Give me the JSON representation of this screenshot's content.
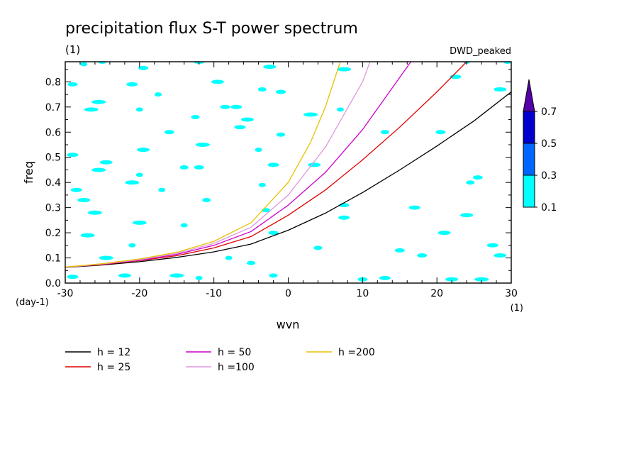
{
  "chart_data": {
    "type": "line",
    "title": "precipitation flux S-T power spectrum",
    "subtitle_left": "(1)",
    "subtitle_right": "DWD_peaked",
    "xlabel": "wvn",
    "ylabel": "freq",
    "x_unit": "(1)",
    "y_unit": "(day-1)",
    "xlim": [
      -30,
      30
    ],
    "ylim": [
      0,
      0.88
    ],
    "xticks": [
      -30,
      -20,
      -10,
      0,
      10,
      20,
      30
    ],
    "yticks": [
      0.0,
      0.1,
      0.2,
      0.3,
      0.4,
      0.5,
      0.6,
      0.7,
      0.8
    ],
    "series": [
      {
        "name": "h = 12",
        "h": 12,
        "color": "#000000",
        "x": [
          -30,
          -25,
          -20,
          -15,
          -10,
          -5,
          0,
          5,
          10,
          15,
          20,
          25,
          30
        ],
        "y": [
          0.062,
          0.072,
          0.085,
          0.102,
          0.124,
          0.155,
          0.21,
          0.278,
          0.36,
          0.45,
          0.545,
          0.645,
          0.76
        ]
      },
      {
        "name": "h = 25",
        "h": 25,
        "color": "#e00000",
        "x": [
          -30,
          -25,
          -20,
          -15,
          -10,
          -5,
          0,
          5,
          10,
          15,
          20,
          24
        ],
        "y": [
          0.063,
          0.074,
          0.089,
          0.109,
          0.14,
          0.185,
          0.27,
          0.37,
          0.49,
          0.62,
          0.76,
          0.88
        ]
      },
      {
        "name": "h = 50",
        "h": 50,
        "color": "#cc00cc",
        "x": [
          -30,
          -25,
          -20,
          -15,
          -10,
          -5,
          0,
          5,
          10,
          16.5
        ],
        "y": [
          0.063,
          0.075,
          0.091,
          0.114,
          0.15,
          0.205,
          0.31,
          0.44,
          0.61,
          0.88
        ]
      },
      {
        "name": "h =100",
        "h": 100,
        "color": "#dd99dd",
        "x": [
          -30,
          -25,
          -20,
          -15,
          -10,
          -5,
          0,
          5,
          10,
          11
        ],
        "y": [
          0.063,
          0.076,
          0.093,
          0.118,
          0.158,
          0.222,
          0.35,
          0.54,
          0.8,
          0.88
        ]
      },
      {
        "name": "h =200",
        "h": 200,
        "color": "#e8c000",
        "x": [
          -30,
          -25,
          -20,
          -15,
          -10,
          -5,
          0,
          3,
          5,
          7
        ],
        "y": [
          0.064,
          0.077,
          0.096,
          0.122,
          0.166,
          0.24,
          0.4,
          0.56,
          0.7,
          0.88
        ]
      }
    ],
    "colorbar": {
      "levels": [
        "0.1",
        "0.3",
        "0.5",
        "0.7"
      ],
      "colors": [
        "#00ffff",
        "#0066ff",
        "#0000cc",
        "#5500aa"
      ],
      "extend": "max"
    },
    "shading": {
      "level": "0.1-0.3",
      "color": "#00ffff",
      "patches": [
        [
          -27.5,
          0.87
        ],
        [
          -25,
          0.88
        ],
        [
          -19.5,
          0.855
        ],
        [
          -12,
          0.88
        ],
        [
          -2.5,
          0.86
        ],
        [
          7.5,
          0.85
        ],
        [
          24,
          0.88
        ],
        [
          29.5,
          0.88
        ],
        [
          -29,
          0.79
        ],
        [
          -21,
          0.79
        ],
        [
          -9.5,
          0.8
        ],
        [
          -25.5,
          0.72
        ],
        [
          -17.5,
          0.75
        ],
        [
          -3.5,
          0.77
        ],
        [
          -1,
          0.76
        ],
        [
          22.5,
          0.82
        ],
        [
          28.5,
          0.77
        ],
        [
          -26.5,
          0.69
        ],
        [
          -20,
          0.69
        ],
        [
          -12.5,
          0.66
        ],
        [
          -8.5,
          0.7
        ],
        [
          -7,
          0.7
        ],
        [
          -5.5,
          0.65
        ],
        [
          3,
          0.67
        ],
        [
          7,
          0.69
        ],
        [
          13,
          0.6
        ],
        [
          -16,
          0.6
        ],
        [
          -6.5,
          0.62
        ],
        [
          -19.5,
          0.53
        ],
        [
          -11.5,
          0.55
        ],
        [
          -4,
          0.53
        ],
        [
          -1,
          0.59
        ],
        [
          20.5,
          0.6
        ],
        [
          -29,
          0.51
        ],
        [
          -24.5,
          0.48
        ],
        [
          -25.5,
          0.45
        ],
        [
          -20,
          0.43
        ],
        [
          -14,
          0.46
        ],
        [
          -12,
          0.46
        ],
        [
          -2,
          0.47
        ],
        [
          3.5,
          0.47
        ],
        [
          -21,
          0.4
        ],
        [
          -3.5,
          0.39
        ],
        [
          24.5,
          0.4
        ],
        [
          25.5,
          0.42
        ],
        [
          -28.5,
          0.37
        ],
        [
          -27.5,
          0.33
        ],
        [
          -26,
          0.28
        ],
        [
          -17,
          0.37
        ],
        [
          -11,
          0.33
        ],
        [
          7.5,
          0.31
        ],
        [
          17,
          0.3
        ],
        [
          24,
          0.27
        ],
        [
          -20,
          0.24
        ],
        [
          -14,
          0.23
        ],
        [
          -3,
          0.29
        ],
        [
          -2,
          0.2
        ],
        [
          7.5,
          0.26
        ],
        [
          21,
          0.2
        ],
        [
          -27,
          0.19
        ],
        [
          -21,
          0.15
        ],
        [
          4,
          0.14
        ],
        [
          15,
          0.13
        ],
        [
          27.5,
          0.15
        ],
        [
          28.5,
          0.11
        ],
        [
          -24.5,
          0.1
        ],
        [
          -8,
          0.1
        ],
        [
          -5,
          0.08
        ],
        [
          18,
          0.11
        ],
        [
          -29,
          0.025
        ],
        [
          -22,
          0.03
        ],
        [
          -15,
          0.03
        ],
        [
          -12,
          0.02
        ],
        [
          -2,
          0.03
        ],
        [
          10,
          0.015
        ],
        [
          13,
          0.02
        ],
        [
          22,
          0.015
        ],
        [
          26,
          0.015
        ]
      ]
    },
    "legend": {
      "placement": "bottom"
    }
  }
}
